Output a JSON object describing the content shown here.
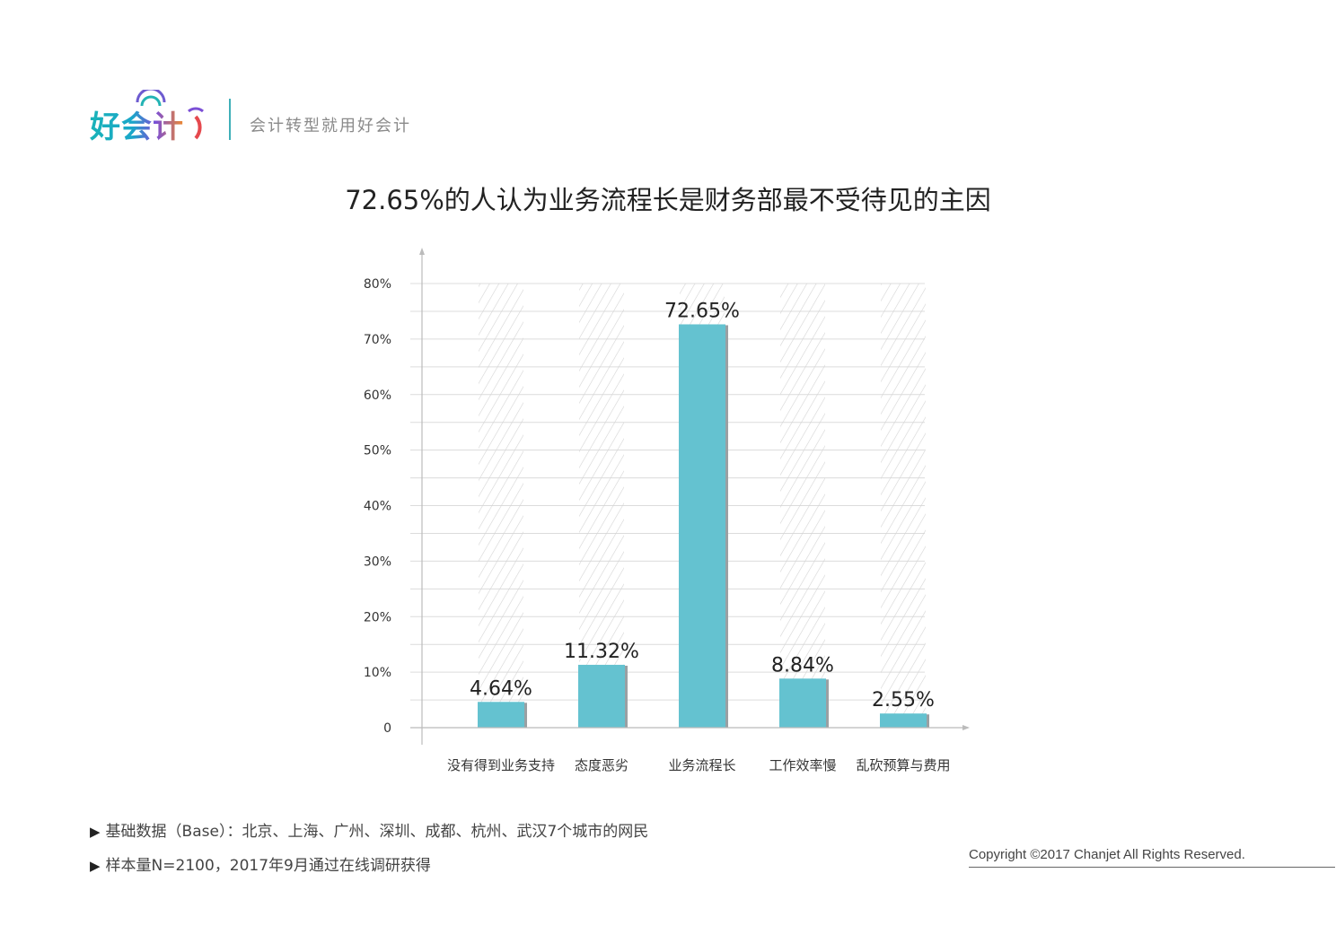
{
  "header": {
    "logo_text": "好会计",
    "slogan": "会计转型就用好会计"
  },
  "colors": {
    "bar": "#64c2d0",
    "grid": "#dcdcdc",
    "hatch": "#d4d4d4",
    "axis": "#bbbbbb"
  },
  "chart_data": {
    "type": "bar",
    "title": "72.65%的人认为业务流程长是财务部最不受待见的主因",
    "categories": [
      "没有得到业务支持",
      "态度恶劣",
      "业务流程长",
      "工作效率慢",
      "乱砍预算与费用"
    ],
    "values": [
      4.64,
      11.32,
      72.65,
      8.84,
      2.55
    ],
    "value_labels": [
      "4.64%",
      "11.32%",
      "72.65%",
      "8.84%",
      "2.55%"
    ],
    "y_ticks": [
      0,
      10,
      20,
      30,
      40,
      50,
      60,
      70,
      80
    ],
    "y_tick_labels": [
      "0",
      "10%",
      "20%",
      "30%",
      "40%",
      "50%",
      "60%",
      "70%",
      "80%"
    ],
    "ylim": [
      0,
      80
    ],
    "grid": true
  },
  "notes": [
    "基础数据（Base）：北京、上海、广州、深圳、成都、杭州、武汉7个城市的网民",
    "样本量N=2100，2017年9月通过在线调研获得"
  ],
  "copyright": "Copyright ©2017 Chanjet All Rights Reserved."
}
